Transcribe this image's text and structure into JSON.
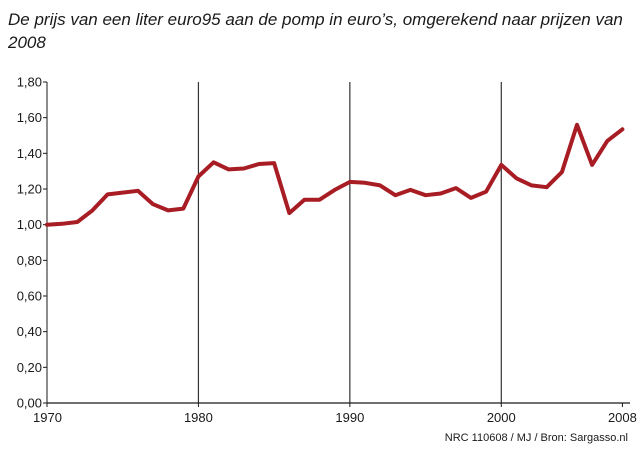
{
  "chart_data": {
    "type": "line",
    "title": "De prijs van een liter euro95 aan de pomp in euro’s, omgerekend naar prijzen van 2008",
    "xlabel": "",
    "ylabel": "",
    "source": "NRC 110608 / MJ / Bron: Sargasso.nl",
    "xlim": [
      1970,
      2008.5
    ],
    "ylim": [
      0,
      1.8
    ],
    "x_ticks": [
      1970,
      1980,
      1990,
      2000,
      2008
    ],
    "y_ticks": [
      0,
      0.2,
      0.4,
      0.6,
      0.8,
      1.0,
      1.2,
      1.4,
      1.6,
      1.8
    ],
    "y_tick_labels": [
      "0,00",
      "0,20",
      "0,40",
      "0,60",
      "0,80",
      "1,00",
      "1,20",
      "1,40",
      "1,60",
      "1,80"
    ],
    "vertical_gridlines": [
      1980,
      1990,
      2000
    ],
    "grid": "vertical lines at decade marks",
    "line_color": "#a81c24",
    "series": [
      {
        "x": [
          1970,
          1971,
          1972,
          1973,
          1974,
          1975,
          1976,
          1977,
          1978,
          1979,
          1980,
          1981,
          1982,
          1983,
          1984,
          1985,
          1986,
          1987,
          1988,
          1989,
          1990,
          1991,
          1992,
          1993,
          1994,
          1995,
          1996,
          1997,
          1998,
          1999,
          2000,
          2001,
          2002,
          2003,
          2004,
          2005,
          2006,
          2007,
          2008
        ],
        "values": [
          1.0,
          1.005,
          1.015,
          1.08,
          1.17,
          1.18,
          1.19,
          1.115,
          1.08,
          1.09,
          1.27,
          1.35,
          1.31,
          1.315,
          1.34,
          1.345,
          1.065,
          1.14,
          1.14,
          1.195,
          1.24,
          1.235,
          1.22,
          1.165,
          1.195,
          1.165,
          1.175,
          1.205,
          1.15,
          1.185,
          1.335,
          1.26,
          1.22,
          1.21,
          1.295,
          1.56,
          1.335,
          1.47,
          1.535
        ]
      }
    ]
  }
}
